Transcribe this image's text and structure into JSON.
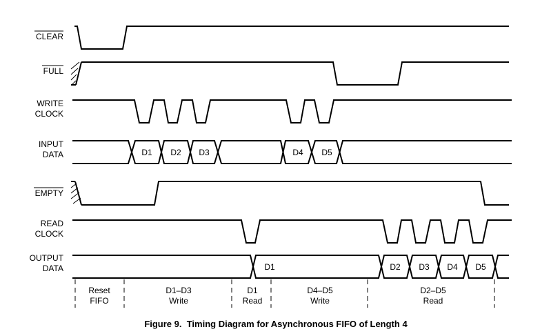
{
  "signals": {
    "clear": {
      "label": "CLEAR",
      "active_low": true
    },
    "full": {
      "label": "FULL",
      "active_low": true
    },
    "write_clock": {
      "label_line1": "WRITE",
      "label_line2": "CLOCK"
    },
    "input_data": {
      "label_line1": "INPUT",
      "label_line2": "DATA",
      "words": [
        "D1",
        "D2",
        "D3",
        "D4",
        "D5"
      ]
    },
    "empty": {
      "label": "EMPTY",
      "active_low": true
    },
    "read_clock": {
      "label_line1": "READ",
      "label_line2": "CLOCK"
    },
    "output_data": {
      "label_line1": "OUTPUT",
      "label_line2": "DATA",
      "words": [
        "D1",
        "D2",
        "D3",
        "D4",
        "D5"
      ]
    }
  },
  "phases": [
    {
      "line1": "Reset",
      "line2": "FIFO"
    },
    {
      "line1": "D1–D3",
      "line2": "Write"
    },
    {
      "line1": "D1",
      "line2": "Read"
    },
    {
      "line1": "D4–D5",
      "line2": "Write"
    },
    {
      "line1": "D2–D5",
      "line2": "Read"
    }
  ],
  "caption": "Figure 9.  Timing Diagram for Asynchronous FIFO of Length 4"
}
